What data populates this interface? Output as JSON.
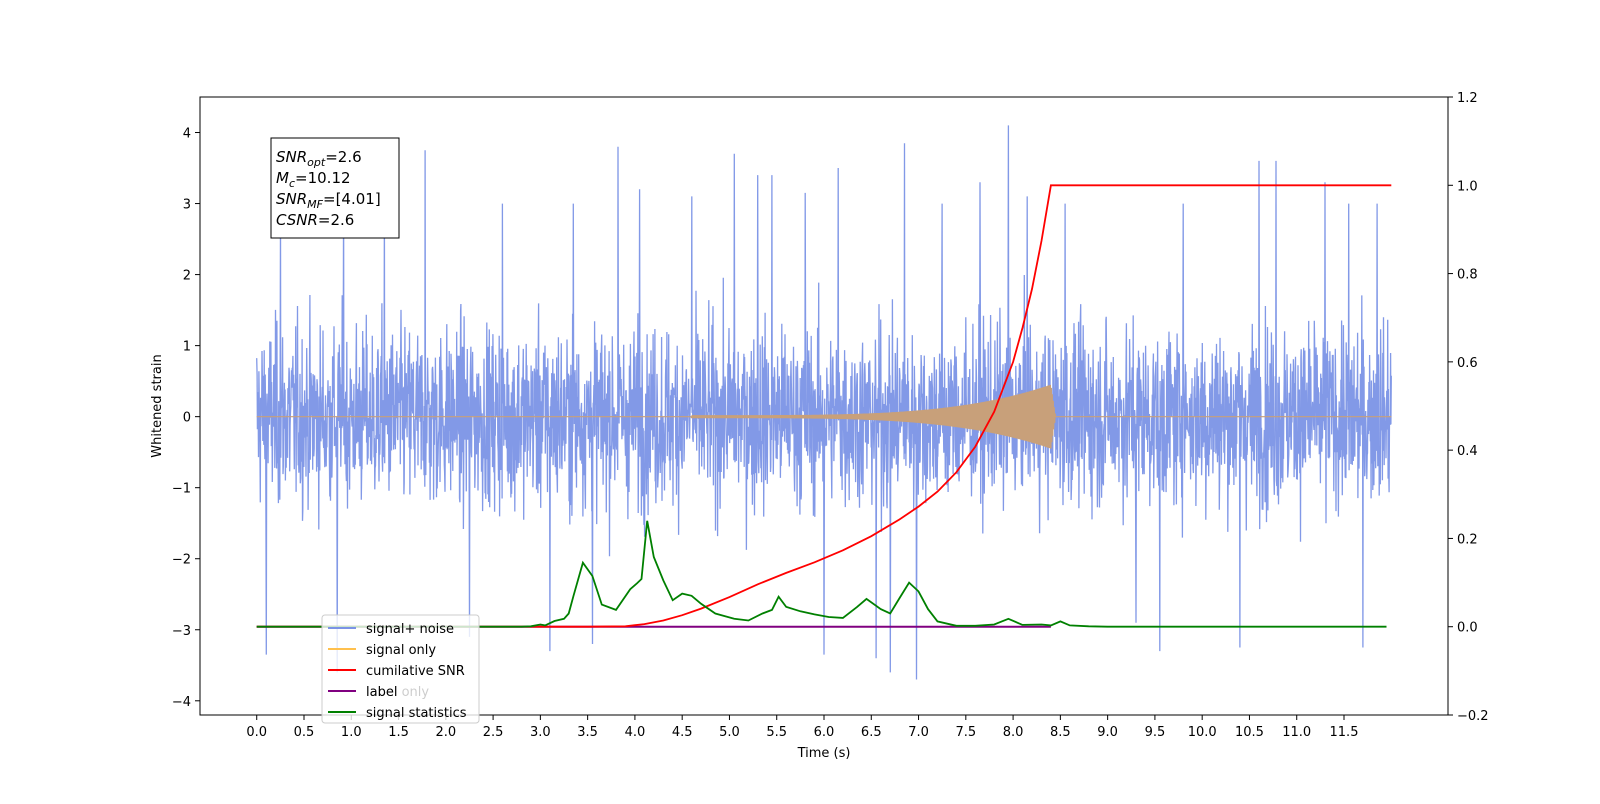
{
  "chart_data": {
    "type": "line",
    "xlabel": "Time (s)",
    "ylabel": "Whitened strain",
    "xlim": [
      -0.6,
      12.6
    ],
    "ylim": [
      -4.2,
      4.5
    ],
    "y2lim": [
      -0.2,
      1.2
    ],
    "x_ticks": [
      0.0,
      0.5,
      1.0,
      1.5,
      2.0,
      2.5,
      3.0,
      3.5,
      4.0,
      4.5,
      5.0,
      5.5,
      6.0,
      6.5,
      7.0,
      7.5,
      8.0,
      8.5,
      9.0,
      9.5,
      10.0,
      10.5,
      11.0,
      11.5
    ],
    "x_tick_labels": [
      "0.0",
      "0.5",
      "1.0",
      "1.5",
      "2.0",
      "2.5",
      "3.0",
      "3.5",
      "4.0",
      "4.5",
      "5.0",
      "5.5",
      "6.0",
      "6.5",
      "7.0",
      "7.5",
      "8.0",
      "8.5",
      "9.0",
      "9.5",
      "10.0",
      "10.5",
      "11.0",
      "11.5"
    ],
    "y_ticks": [
      -4,
      -3,
      -2,
      -1,
      0,
      1,
      2,
      3,
      4
    ],
    "y_tick_labels": [
      "−4",
      "−3",
      "−2",
      "−1",
      "0",
      "1",
      "2",
      "3",
      "4"
    ],
    "y2_ticks": [
      -0.2,
      0.0,
      0.2,
      0.4,
      0.6,
      0.8,
      1.0,
      1.2
    ],
    "y2_tick_labels": [
      "−0.2",
      "0.0",
      "0.2",
      "0.4",
      "0.6",
      "0.8",
      "1.0",
      "1.2"
    ],
    "legend_position": "lower-left",
    "legend": [
      {
        "label": "signal+ noise",
        "color": "#7b93e6"
      },
      {
        "label": "signal only",
        "color": "#ffc04d"
      },
      {
        "label": "cumilative SNR",
        "color": "#ff0000"
      },
      {
        "label": "label",
        "color": "#800080"
      },
      {
        "label": "signal statistics",
        "color": "#008000"
      }
    ],
    "hidden_legend_text": "label only",
    "annotation": [
      {
        "sym": "SNR",
        "sub": "opt",
        "text": "=2.6"
      },
      {
        "sym": "M",
        "sub": "c",
        "text": "=10.12"
      },
      {
        "sym": "SNR",
        "sub": "MF",
        "text": "=[4.01]"
      },
      {
        "sym": "CSNR",
        "sub": "",
        "text": "=2.6"
      }
    ],
    "series": [
      {
        "name": "signal+ noise",
        "axis": "left",
        "color": "#7b93e6",
        "x_range": [
          0.0,
          12.0
        ],
        "envelope": {
          "typical_min": -2.3,
          "typical_max": 2.4
        },
        "peaks": [
          {
            "x": 0.1,
            "y": -3.35
          },
          {
            "x": 0.25,
            "y": 2.85
          },
          {
            "x": 0.85,
            "y": -3.6
          },
          {
            "x": 0.92,
            "y": 3.1
          },
          {
            "x": 1.35,
            "y": 3.0
          },
          {
            "x": 1.78,
            "y": 3.75
          },
          {
            "x": 2.25,
            "y": -3.1
          },
          {
            "x": 2.6,
            "y": 3.0
          },
          {
            "x": 3.1,
            "y": -3.3
          },
          {
            "x": 3.35,
            "y": 3.0
          },
          {
            "x": 3.55,
            "y": -3.2
          },
          {
            "x": 3.82,
            "y": 3.8
          },
          {
            "x": 4.05,
            "y": 3.2
          },
          {
            "x": 4.6,
            "y": 3.1
          },
          {
            "x": 5.05,
            "y": 3.7
          },
          {
            "x": 5.3,
            "y": 3.4
          },
          {
            "x": 5.45,
            "y": 3.4
          },
          {
            "x": 5.8,
            "y": 3.15
          },
          {
            "x": 6.0,
            "y": -3.35
          },
          {
            "x": 6.15,
            "y": 3.5
          },
          {
            "x": 6.55,
            "y": -3.4
          },
          {
            "x": 6.7,
            "y": -3.6
          },
          {
            "x": 6.85,
            "y": 3.85
          },
          {
            "x": 6.98,
            "y": -3.7
          },
          {
            "x": 7.25,
            "y": 3.0
          },
          {
            "x": 7.65,
            "y": 3.3
          },
          {
            "x": 7.95,
            "y": 4.1
          },
          {
            "x": 8.15,
            "y": 3.1
          },
          {
            "x": 8.55,
            "y": 3.0
          },
          {
            "x": 9.3,
            "y": -2.9
          },
          {
            "x": 9.55,
            "y": -3.3
          },
          {
            "x": 9.8,
            "y": 3.0
          },
          {
            "x": 10.4,
            "y": -3.25
          },
          {
            "x": 10.6,
            "y": 3.6
          },
          {
            "x": 10.78,
            "y": 3.6
          },
          {
            "x": 11.3,
            "y": 3.3
          },
          {
            "x": 11.55,
            "y": 3.0
          },
          {
            "x": 11.7,
            "y": -3.25
          },
          {
            "x": 11.85,
            "y": 3.0
          }
        ]
      },
      {
        "name": "signal only",
        "axis": "left",
        "color": "#c8a07a",
        "x_range": [
          0.0,
          12.0
        ],
        "chirp_start": 4.6,
        "merger": 8.4,
        "amplitude_at_merger": 0.45,
        "amplitude_at_start": 0.02
      },
      {
        "name": "cumilative SNR",
        "axis": "right",
        "color": "#ff0000",
        "points": [
          [
            0.0,
            0.0
          ],
          [
            3.5,
            0.0
          ],
          [
            3.9,
            0.001
          ],
          [
            4.1,
            0.006
          ],
          [
            4.3,
            0.014
          ],
          [
            4.5,
            0.026
          ],
          [
            4.7,
            0.041
          ],
          [
            5.0,
            0.067
          ],
          [
            5.3,
            0.096
          ],
          [
            5.6,
            0.122
          ],
          [
            5.9,
            0.146
          ],
          [
            6.2,
            0.173
          ],
          [
            6.5,
            0.205
          ],
          [
            6.8,
            0.243
          ],
          [
            7.0,
            0.272
          ],
          [
            7.2,
            0.306
          ],
          [
            7.4,
            0.35
          ],
          [
            7.6,
            0.408
          ],
          [
            7.8,
            0.487
          ],
          [
            8.0,
            0.6
          ],
          [
            8.1,
            0.677
          ],
          [
            8.2,
            0.765
          ],
          [
            8.3,
            0.874
          ],
          [
            8.4,
            1.0
          ],
          [
            12.0,
            1.0
          ]
        ]
      },
      {
        "name": "label",
        "axis": "right",
        "color": "#800080",
        "points": [
          [
            0.0,
            0.0
          ],
          [
            8.4,
            0.0
          ]
        ]
      },
      {
        "name": "signal statistics",
        "axis": "right",
        "color": "#008000",
        "points": [
          [
            0.0,
            0.0
          ],
          [
            2.8,
            0.0
          ],
          [
            2.9,
            0.001
          ],
          [
            3.0,
            0.005
          ],
          [
            3.05,
            0.003
          ],
          [
            3.15,
            0.013
          ],
          [
            3.25,
            0.018
          ],
          [
            3.3,
            0.03
          ],
          [
            3.35,
            0.07
          ],
          [
            3.45,
            0.145
          ],
          [
            3.55,
            0.115
          ],
          [
            3.65,
            0.05
          ],
          [
            3.8,
            0.038
          ],
          [
            3.95,
            0.085
          ],
          [
            4.02,
            0.098
          ],
          [
            4.07,
            0.108
          ],
          [
            4.13,
            0.24
          ],
          [
            4.2,
            0.158
          ],
          [
            4.3,
            0.105
          ],
          [
            4.4,
            0.06
          ],
          [
            4.5,
            0.075
          ],
          [
            4.6,
            0.07
          ],
          [
            4.7,
            0.052
          ],
          [
            4.85,
            0.03
          ],
          [
            4.95,
            0.024
          ],
          [
            5.05,
            0.018
          ],
          [
            5.2,
            0.014
          ],
          [
            5.35,
            0.03
          ],
          [
            5.45,
            0.038
          ],
          [
            5.52,
            0.068
          ],
          [
            5.6,
            0.045
          ],
          [
            5.75,
            0.035
          ],
          [
            5.9,
            0.028
          ],
          [
            6.05,
            0.022
          ],
          [
            6.2,
            0.02
          ],
          [
            6.35,
            0.045
          ],
          [
            6.45,
            0.063
          ],
          [
            6.6,
            0.04
          ],
          [
            6.7,
            0.03
          ],
          [
            6.8,
            0.065
          ],
          [
            6.9,
            0.1
          ],
          [
            7.0,
            0.08
          ],
          [
            7.1,
            0.04
          ],
          [
            7.2,
            0.012
          ],
          [
            7.4,
            0.002
          ],
          [
            7.6,
            0.002
          ],
          [
            7.8,
            0.005
          ],
          [
            7.95,
            0.018
          ],
          [
            8.1,
            0.004
          ],
          [
            8.3,
            0.005
          ],
          [
            8.4,
            0.003
          ],
          [
            8.5,
            0.012
          ],
          [
            8.6,
            0.003
          ],
          [
            8.8,
            0.001
          ],
          [
            9.0,
            0.0
          ],
          [
            11.95,
            0.0
          ]
        ]
      }
    ]
  }
}
